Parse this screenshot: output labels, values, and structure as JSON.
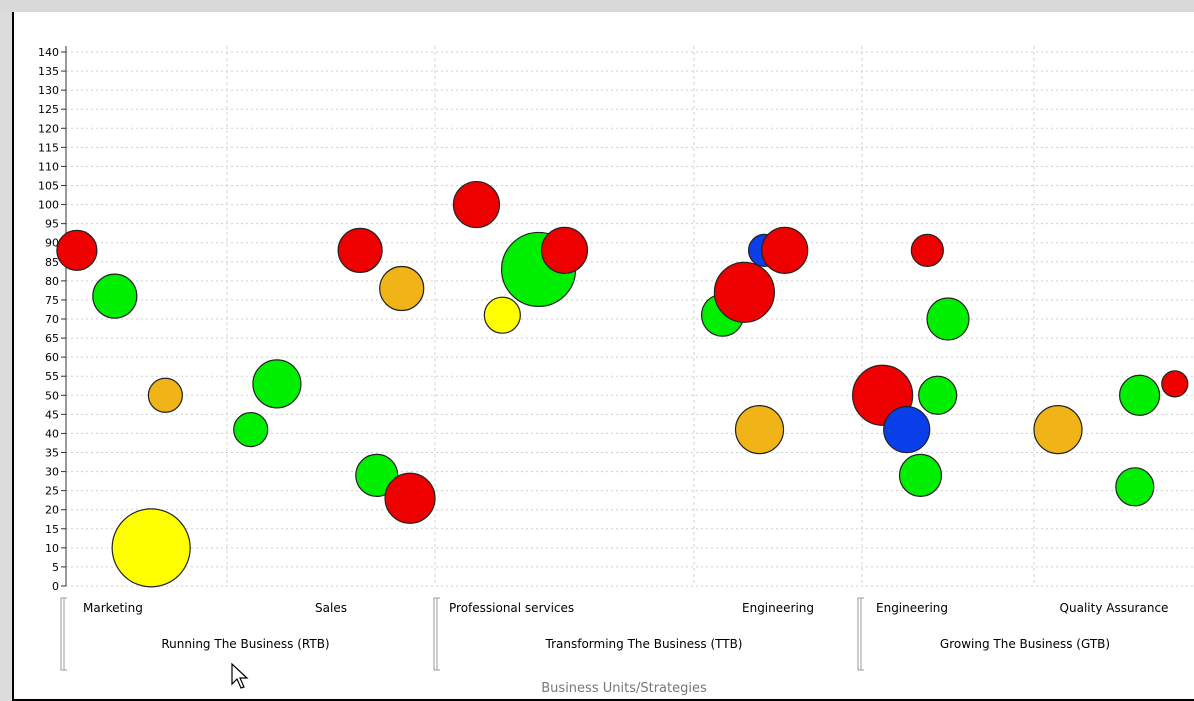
{
  "chart_data": {
    "type": "bubble",
    "title": "",
    "xlabel": "Business Units/Strategies",
    "ylabel": "",
    "ylim": [
      0,
      140
    ],
    "ytick_step": 5,
    "grid": true,
    "colors": {
      "red": "#ee0000",
      "green": "#00ee00",
      "orange": "#f0b418",
      "yellow": "#ffff00",
      "blue": "#0a3ee8"
    },
    "groups": [
      {
        "label": "Running The Business (RTB)",
        "categories": [
          "Marketing",
          "Sales"
        ]
      },
      {
        "label": "Transforming The Business (TTB)",
        "categories": [
          "Professional services",
          "Engineering"
        ]
      },
      {
        "label": "Growing The Business (GTB)",
        "categories": [
          "Engineering",
          "Quality Assurance"
        ]
      }
    ],
    "bubbles": [
      {
        "category": "Marketing",
        "offset": 0.05,
        "y": 88,
        "size": 20,
        "color": "red"
      },
      {
        "category": "Marketing",
        "offset": 0.29,
        "y": 76,
        "size": 22,
        "color": "green"
      },
      {
        "category": "Marketing",
        "offset": 0.61,
        "y": 50,
        "size": 17,
        "color": "orange"
      },
      {
        "category": "Marketing",
        "offset": 0.52,
        "y": 10,
        "size": 39,
        "color": "yellow"
      },
      {
        "category": "Marketing",
        "offset": 1.15,
        "y": 41,
        "size": 17,
        "color": "green"
      },
      {
        "category": "Sales",
        "offset": 0.24,
        "y": 53,
        "size": 24,
        "color": "green"
      },
      {
        "category": "Sales",
        "offset": 0.64,
        "y": 88,
        "size": 22,
        "color": "red"
      },
      {
        "category": "Sales",
        "offset": 0.84,
        "y": 78,
        "size": 22,
        "color": "orange"
      },
      {
        "category": "Sales",
        "offset": 0.72,
        "y": 29,
        "size": 21,
        "color": "green"
      },
      {
        "category": "Sales",
        "offset": 0.88,
        "y": 23,
        "size": 25,
        "color": "red"
      },
      {
        "category": "Professional services",
        "offset": 0.16,
        "y": 100,
        "size": 23,
        "color": "red"
      },
      {
        "category": "Professional services",
        "offset": 0.4,
        "y": 83,
        "size": 37,
        "color": "green"
      },
      {
        "category": "Professional services",
        "offset": 0.5,
        "y": 88,
        "size": 23,
        "color": "red"
      },
      {
        "category": "Professional services",
        "offset": 0.26,
        "y": 71,
        "size": 18,
        "color": "yellow"
      },
      {
        "category": "Engineering",
        "offset": 0.17,
        "y": 71,
        "size": 21,
        "color": "green"
      },
      {
        "category": "Engineering",
        "offset": 0.3,
        "y": 77,
        "size": 30,
        "color": "red"
      },
      {
        "category": "Engineering",
        "offset": 0.42,
        "y": 88,
        "size": 16,
        "color": "blue"
      },
      {
        "category": "Engineering",
        "offset": 0.54,
        "y": 88,
        "size": 23,
        "color": "red"
      },
      {
        "category": "Engineering",
        "offset": 0.39,
        "y": 41,
        "size": 24,
        "color": "orange"
      },
      {
        "category": "Engineering ",
        "offset": 0.12,
        "y": 50,
        "size": 30,
        "color": "red"
      },
      {
        "category": "Engineering ",
        "offset": 0.26,
        "y": 41,
        "size": 23,
        "color": "blue"
      },
      {
        "category": "Engineering ",
        "offset": 0.34,
        "y": 29,
        "size": 21,
        "color": "green"
      },
      {
        "category": "Engineering ",
        "offset": 0.38,
        "y": 88,
        "size": 16,
        "color": "red"
      },
      {
        "category": "Engineering ",
        "offset": 0.5,
        "y": 70,
        "size": 21,
        "color": "green"
      },
      {
        "category": "Engineering ",
        "offset": 0.44,
        "y": 50,
        "size": 19,
        "color": "green"
      },
      {
        "category": "Quality Assurance",
        "offset": 0.15,
        "y": 41,
        "size": 24,
        "color": "orange"
      },
      {
        "category": "Quality Assurance",
        "offset": 0.66,
        "y": 50,
        "size": 20,
        "color": "green"
      },
      {
        "category": "Quality Assurance",
        "offset": 0.63,
        "y": 26,
        "size": 19,
        "color": "green"
      },
      {
        "category": "Quality Assurance",
        "offset": 0.88,
        "y": 53,
        "size": 13,
        "color": "red"
      }
    ]
  }
}
